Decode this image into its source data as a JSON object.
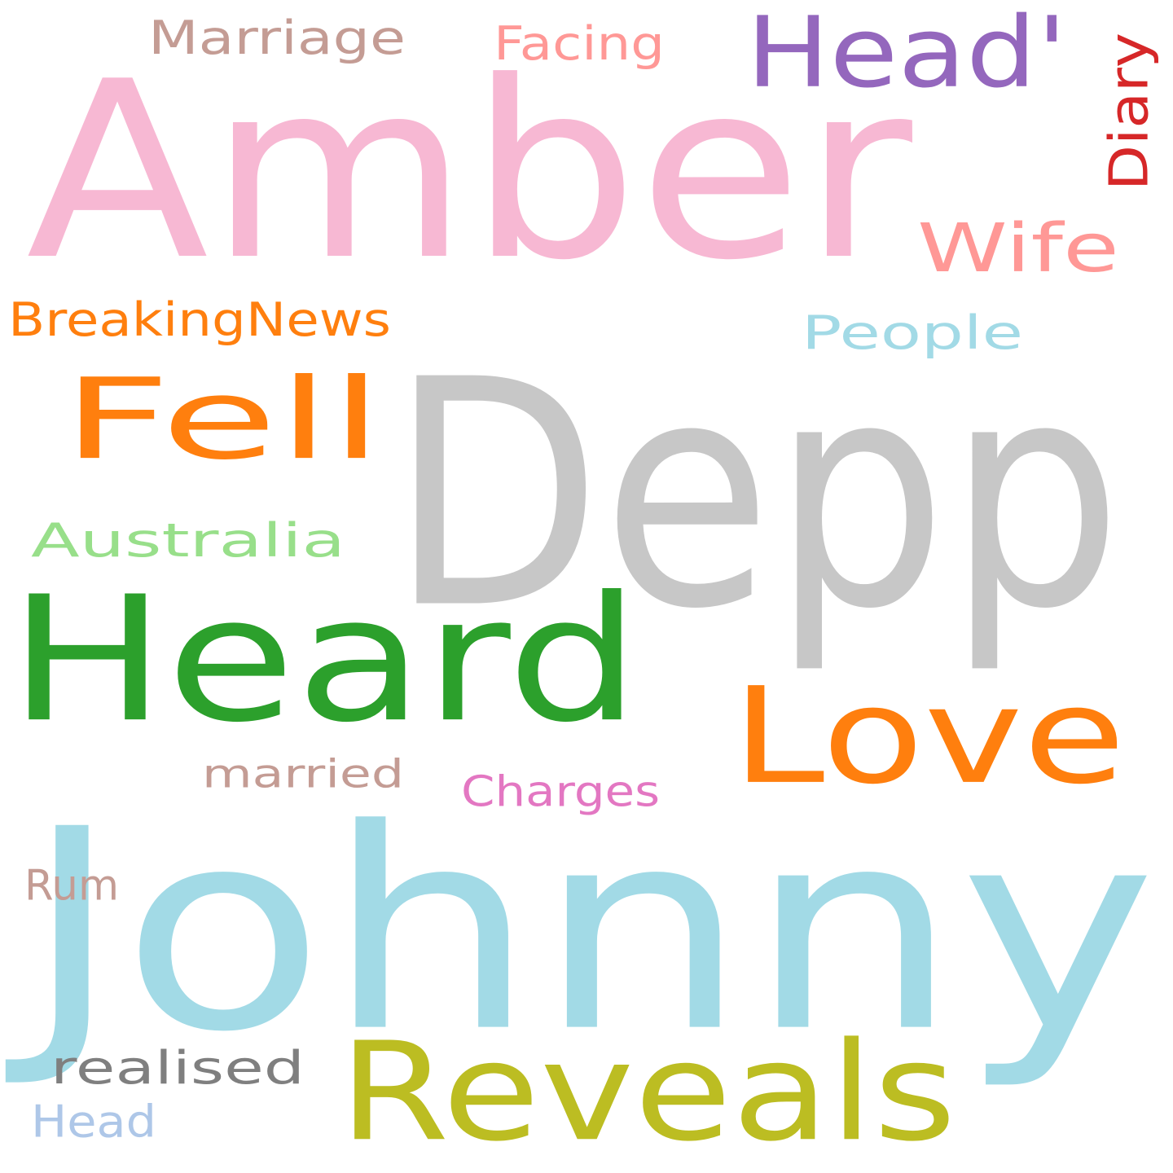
{
  "words": [
    {
      "text": "Johnny",
      "color": "#a2dae6"
    },
    {
      "text": "Amber",
      "color": "#f7b8d3"
    },
    {
      "text": "Depp",
      "color": "#c7c7c7"
    },
    {
      "text": "Heard",
      "color": "#2ca02c"
    },
    {
      "text": "Love",
      "color": "#ff7f0e"
    },
    {
      "text": "Reveals",
      "color": "#bcbd22"
    },
    {
      "text": "Fell",
      "color": "#ff7f0e"
    },
    {
      "text": "Head'",
      "color": "#9467bd"
    },
    {
      "text": "Wife",
      "color": "#ff9896"
    },
    {
      "text": "Australia",
      "color": "#98df8a"
    },
    {
      "text": "BreakingNews",
      "color": "#ff7f0e"
    },
    {
      "text": "People",
      "color": "#a2dae6"
    },
    {
      "text": "Marriage",
      "color": "#c49c94"
    },
    {
      "text": "Facing",
      "color": "#ff9896"
    },
    {
      "text": "married",
      "color": "#c49c94"
    },
    {
      "text": "Charges",
      "color": "#e377c2"
    },
    {
      "text": "realised",
      "color": "#7f7f7f"
    },
    {
      "text": "Rum",
      "color": "#c49c94"
    },
    {
      "text": "Head",
      "color": "#aec7e8"
    },
    {
      "text": "Diary",
      "color": "#d62728"
    }
  ]
}
